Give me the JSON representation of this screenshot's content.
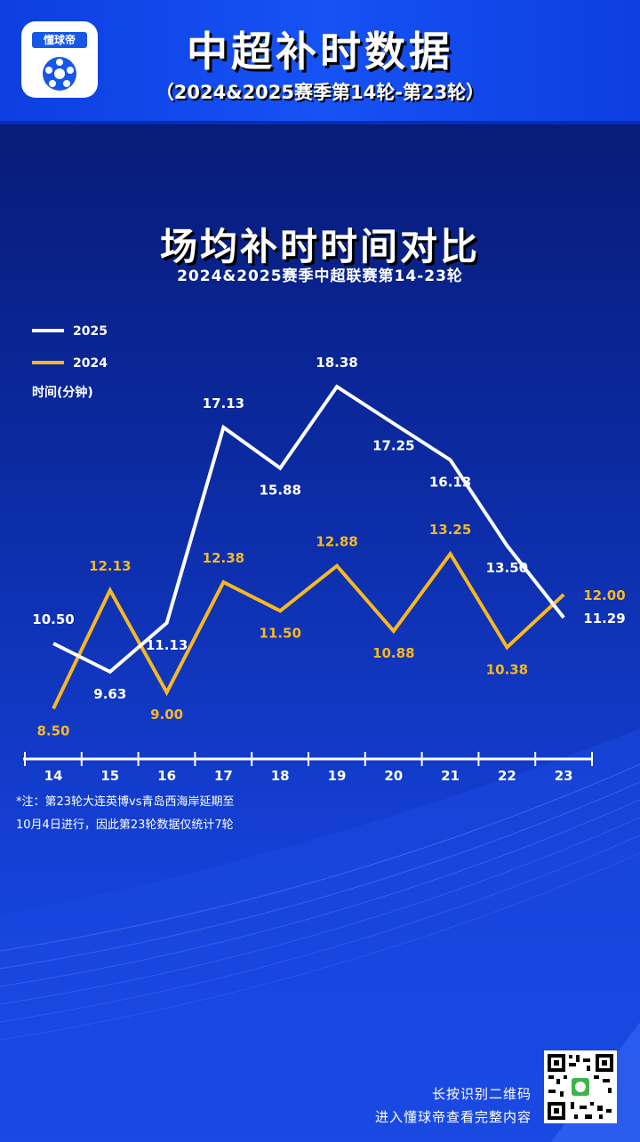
{
  "header": {
    "logo_label": "懂球帝",
    "title": "中超补时数据",
    "subtitle": "（2024&2025赛季第14轮-第23轮）"
  },
  "chart_data": {
    "type": "line",
    "title": "场均补时时间对比",
    "subtitle": "2024&2025赛季中超联赛第14-23轮",
    "xlabel": "",
    "ylabel": "时间(分钟)",
    "categories": [
      "14",
      "15",
      "16",
      "17",
      "18",
      "19",
      "20",
      "21",
      "22",
      "23"
    ],
    "ylim": [
      7.5,
      19.5
    ],
    "legend_position": "top-left",
    "grid": false,
    "series": [
      {
        "name": "2025",
        "color": "#ffffff",
        "values": [
          10.5,
          9.63,
          11.13,
          17.13,
          15.88,
          18.38,
          17.25,
          16.13,
          13.5,
          11.29
        ],
        "labels": [
          "10.50",
          "9.63",
          "11.13",
          "17.13",
          "15.88",
          "18.38",
          "17.25",
          "16.13",
          "13.50",
          "11.29"
        ]
      },
      {
        "name": "2024",
        "color": "#f8b820",
        "values": [
          8.5,
          12.13,
          9.0,
          12.38,
          11.5,
          12.88,
          10.88,
          13.25,
          10.38,
          12.0
        ],
        "labels": [
          "8.50",
          "12.13",
          "9.00",
          "12.38",
          "11.50",
          "12.88",
          "10.88",
          "13.25",
          "10.38",
          "12.00"
        ]
      }
    ]
  },
  "note": {
    "line1": "*注：第23轮大连英博vs青岛西海岸延期至",
    "line2": "10月4日进行，因此第23轮数据仅统计7轮"
  },
  "footer": {
    "line1": "长按识别二维码",
    "line2": "进入懂球帝查看完整内容"
  }
}
